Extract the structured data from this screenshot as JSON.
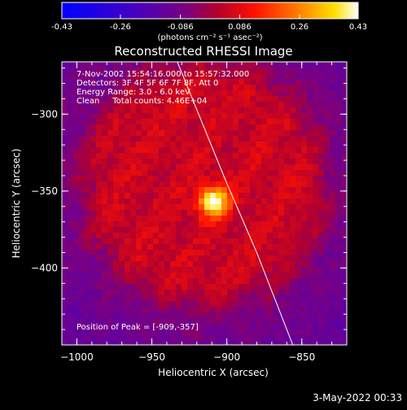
{
  "chart_data": {
    "type": "heatmap",
    "title": "Reconstructed RHESSI Image",
    "colorbar": {
      "ticks": [
        "-0.43",
        "-0.26",
        "-0.086",
        "0.086",
        "0.26",
        "0.43"
      ],
      "tick_values": [
        -0.43,
        -0.26,
        -0.086,
        0.086,
        0.26,
        0.43
      ],
      "range": [
        -0.43,
        0.43
      ],
      "label": "(photons cm⁻² s⁻¹ asec⁻²)"
    },
    "xlabel": "Heliocentric X (arcsec)",
    "ylabel": "Heliocentric Y (arcsec)",
    "xlim": [
      -1010,
      -820
    ],
    "ylim": [
      -450,
      -266
    ],
    "x_ticks": [
      -1000,
      -950,
      -900,
      -850
    ],
    "x_tick_labels": [
      "−1000",
      "−950",
      "−900",
      "−850"
    ],
    "y_ticks": [
      -300,
      -350,
      -400
    ],
    "y_tick_labels": [
      "−300",
      "−350",
      "−400"
    ],
    "info_lines": [
      "7-Nov-2002 15:54:16.000 to 15:57:32.000",
      "Detectors: 3F 4F 5F 6F 7F 8F, Att 0",
      "Energy Range: 3.0 - 6.0 keV",
      "Clean     Total counts: 4.46E+04"
    ],
    "peak_label": "Position of Peak = [-909,-357]",
    "peak": {
      "x": -909,
      "y": -357,
      "value": 0.43
    },
    "limb_curve": [
      [
        -933,
        -266
      ],
      [
        -900,
        -345
      ],
      [
        -880,
        -390
      ],
      [
        -856,
        -450
      ]
    ],
    "colors": {
      "background": "#000000",
      "limb": "#ffffff"
    }
  },
  "timestamp": "3-May-2022 00:33"
}
